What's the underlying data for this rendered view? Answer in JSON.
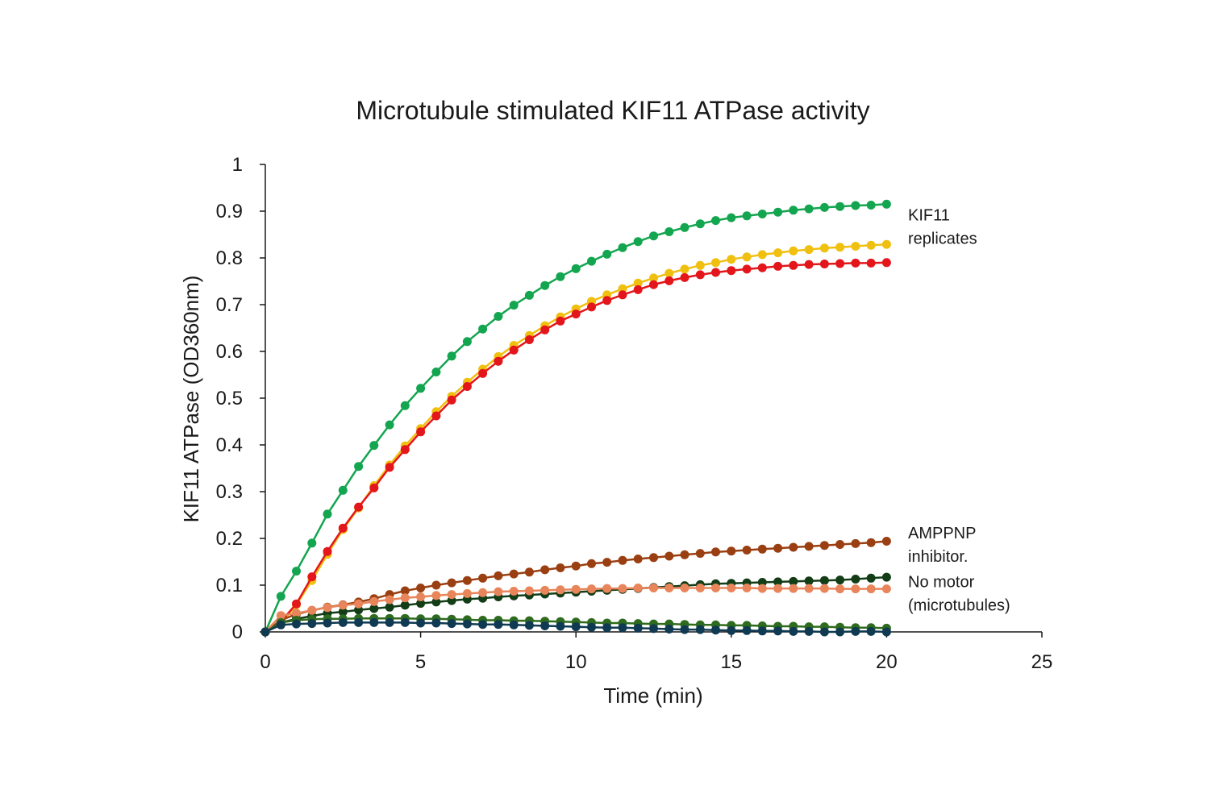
{
  "chart_data": {
    "type": "line",
    "title": "Microtubule stimulated KIF11 ATPase activity",
    "xlabel": "Time (min)",
    "ylabel": "KIF11 ATPase  (OD360nm)",
    "xlim": [
      0,
      25
    ],
    "ylim": [
      0,
      1
    ],
    "xticks": [
      "0",
      "5",
      "10",
      "15",
      "20",
      "25"
    ],
    "yticks": [
      "0",
      "0.1",
      "0.2",
      "0.3",
      "0.4",
      "0.5",
      "0.6",
      "0.7",
      "0.8",
      "0.9",
      "1"
    ],
    "grid": false,
    "x": [
      0,
      0.5,
      1,
      1.5,
      2,
      2.5,
      3,
      3.5,
      4,
      4.5,
      5,
      5.5,
      6,
      6.5,
      7,
      7.5,
      8,
      8.5,
      9,
      9.5,
      10,
      10.5,
      11,
      11.5,
      12,
      12.5,
      13,
      13.5,
      14,
      14.5,
      15,
      15.5,
      16,
      16.5,
      17,
      17.5,
      18,
      18.5,
      19,
      19.5,
      20
    ],
    "series": [
      {
        "name": "KIF11 replicate 1",
        "color": "#13a54f",
        "values": [
          0,
          0.076,
          0.13,
          0.19,
          0.252,
          0.303,
          0.354,
          0.399,
          0.443,
          0.484,
          0.521,
          0.556,
          0.59,
          0.621,
          0.648,
          0.675,
          0.699,
          0.72,
          0.741,
          0.76,
          0.777,
          0.793,
          0.808,
          0.822,
          0.835,
          0.847,
          0.856,
          0.865,
          0.873,
          0.88,
          0.886,
          0.89,
          0.894,
          0.898,
          0.902,
          0.905,
          0.908,
          0.91,
          0.912,
          0.913,
          0.915
        ]
      },
      {
        "name": "KIF11 replicate 2",
        "color": "#f0c010",
        "values": [
          0,
          0.018,
          0.058,
          0.11,
          0.166,
          0.219,
          0.265,
          0.313,
          0.357,
          0.398,
          0.435,
          0.471,
          0.504,
          0.534,
          0.562,
          0.589,
          0.613,
          0.634,
          0.655,
          0.674,
          0.691,
          0.707,
          0.721,
          0.734,
          0.746,
          0.757,
          0.767,
          0.776,
          0.784,
          0.79,
          0.797,
          0.802,
          0.807,
          0.811,
          0.815,
          0.818,
          0.821,
          0.823,
          0.825,
          0.827,
          0.829
        ]
      },
      {
        "name": "KIF11 replicate 3",
        "color": "#e3161b",
        "values": [
          0,
          0.022,
          0.06,
          0.118,
          0.172,
          0.222,
          0.267,
          0.308,
          0.352,
          0.39,
          0.428,
          0.462,
          0.496,
          0.525,
          0.553,
          0.579,
          0.603,
          0.625,
          0.646,
          0.665,
          0.68,
          0.695,
          0.709,
          0.721,
          0.732,
          0.743,
          0.751,
          0.758,
          0.764,
          0.769,
          0.773,
          0.776,
          0.779,
          0.782,
          0.784,
          0.786,
          0.787,
          0.788,
          0.789,
          0.789,
          0.79
        ]
      },
      {
        "name": "AMPPNP inhibitor 1",
        "color": "#9a3f12",
        "values": [
          0,
          0.025,
          0.038,
          0.046,
          0.053,
          0.058,
          0.064,
          0.071,
          0.08,
          0.088,
          0.094,
          0.1,
          0.105,
          0.11,
          0.115,
          0.12,
          0.124,
          0.128,
          0.133,
          0.137,
          0.141,
          0.146,
          0.149,
          0.153,
          0.156,
          0.159,
          0.162,
          0.165,
          0.168,
          0.171,
          0.173,
          0.175,
          0.177,
          0.179,
          0.181,
          0.183,
          0.185,
          0.187,
          0.189,
          0.191,
          0.194
        ]
      },
      {
        "name": "AMPPNP inhibitor 2",
        "color": "#133d16",
        "values": [
          0,
          0.02,
          0.028,
          0.034,
          0.04,
          0.043,
          0.047,
          0.05,
          0.053,
          0.057,
          0.061,
          0.064,
          0.067,
          0.07,
          0.072,
          0.075,
          0.077,
          0.079,
          0.081,
          0.083,
          0.085,
          0.087,
          0.089,
          0.091,
          0.093,
          0.095,
          0.097,
          0.099,
          0.101,
          0.103,
          0.104,
          0.105,
          0.106,
          0.107,
          0.108,
          0.109,
          0.11,
          0.111,
          0.113,
          0.115,
          0.117
        ]
      },
      {
        "name": "No motor 1",
        "color": "#e8855a",
        "values": [
          0,
          0.035,
          0.04,
          0.046,
          0.052,
          0.057,
          0.06,
          0.065,
          0.069,
          0.073,
          0.075,
          0.078,
          0.08,
          0.082,
          0.084,
          0.086,
          0.087,
          0.088,
          0.089,
          0.09,
          0.091,
          0.092,
          0.093,
          0.093,
          0.094,
          0.094,
          0.094,
          0.094,
          0.094,
          0.094,
          0.094,
          0.094,
          0.093,
          0.093,
          0.093,
          0.093,
          0.093,
          0.092,
          0.092,
          0.092,
          0.092
        ]
      },
      {
        "name": "No motor 2",
        "color": "#2f6b1f",
        "values": [
          0,
          0.02,
          0.025,
          0.027,
          0.028,
          0.028,
          0.029,
          0.029,
          0.029,
          0.029,
          0.028,
          0.028,
          0.027,
          0.026,
          0.025,
          0.025,
          0.024,
          0.024,
          0.023,
          0.022,
          0.021,
          0.02,
          0.019,
          0.019,
          0.018,
          0.017,
          0.017,
          0.016,
          0.015,
          0.015,
          0.014,
          0.014,
          0.013,
          0.012,
          0.012,
          0.011,
          0.011,
          0.01,
          0.009,
          0.009,
          0.008
        ]
      },
      {
        "name": "No motor 3",
        "color": "#0f3a52",
        "values": [
          0,
          0.015,
          0.017,
          0.018,
          0.019,
          0.02,
          0.02,
          0.02,
          0.02,
          0.02,
          0.019,
          0.019,
          0.018,
          0.017,
          0.016,
          0.016,
          0.015,
          0.014,
          0.013,
          0.012,
          0.011,
          0.01,
          0.009,
          0.009,
          0.008,
          0.007,
          0.006,
          0.005,
          0.005,
          0.004,
          0.003,
          0.003,
          0.002,
          0.002,
          0.001,
          0.001,
          0.0,
          0.0,
          0.001,
          0.001,
          0.0
        ]
      }
    ],
    "annotations": [
      {
        "lines": [
          "KIF11",
          "replicates"
        ],
        "anchor_y": 0.88
      },
      {
        "lines": [
          "AMPPNP",
          "inhibitor."
        ],
        "anchor_y": 0.2
      },
      {
        "lines": [
          "No motor",
          "(microtubules)"
        ],
        "anchor_y": 0.096
      }
    ]
  }
}
